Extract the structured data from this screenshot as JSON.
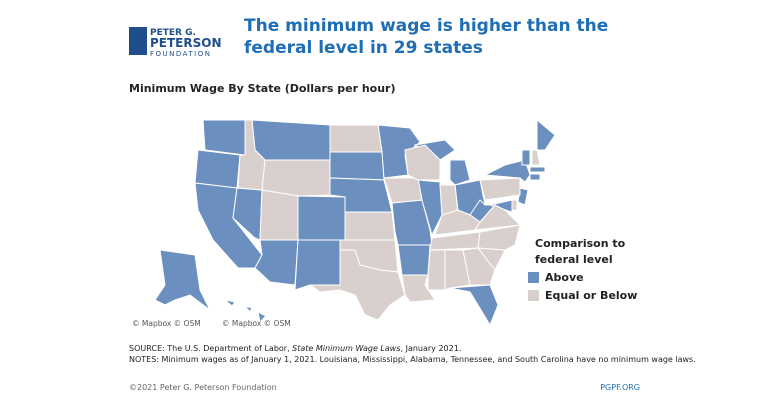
{
  "header": {
    "logo": [
      "PETER G.",
      "PETERSON",
      "FOUNDATION"
    ],
    "title": "The minimum wage is higher than the federal level in 29 states"
  },
  "map": {
    "subtitle": "Minimum Wage By State (Dollars per hour)",
    "attribution": [
      "© Mapbox © OSM",
      "© Mapbox © OSM"
    ],
    "legend": {
      "title": "Comparison to federal level",
      "items": [
        {
          "label": "Above",
          "color": "#6b8fbf"
        },
        {
          "label": "Equal  or Below",
          "color": "#d9d0cd"
        }
      ]
    }
  },
  "source": {
    "prefix": "SOURCE: The U.S. Department of Labor, ",
    "title": "State  Minimum Wage Laws",
    "suffix": ", January 2021.",
    "notes": "NOTES: Minimum wages as of January 1, 2021. Louisiana, Mississippi, Alabama, Tennessee, and South Carolina have no minimum wage laws."
  },
  "footer": {
    "left": "©2021 Peter G. Peterson Foundation",
    "right": "PGPF.ORG"
  }
}
